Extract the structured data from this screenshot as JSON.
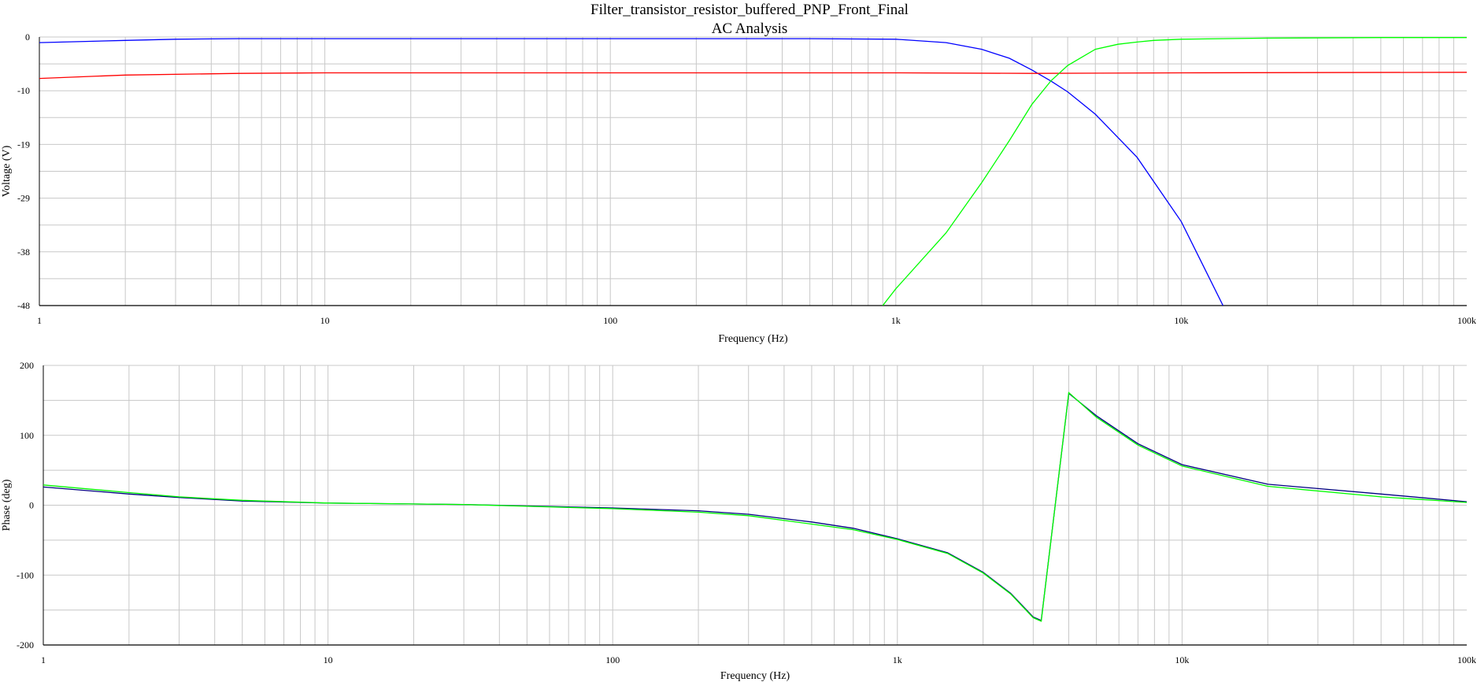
{
  "title": "Filter_transistor_resistor_buffered_PNP_Front_Final",
  "subtitle": "AC Analysis",
  "chart_data": [
    {
      "type": "line",
      "x_scale": "log",
      "xlim": [
        1,
        100000
      ],
      "ylim": [
        -48,
        0
      ],
      "xlabel": "Frequency (Hz)",
      "ylabel": "Voltage (V)",
      "x_tick_labels": [
        "1",
        "10",
        "100",
        "1k",
        "10k",
        "100k"
      ],
      "y_tick_labels": [
        "0",
        "-10",
        "-19",
        "-29",
        "-38",
        "-48"
      ],
      "grid": true,
      "series": [
        {
          "color": "#0000ff",
          "x": [
            1,
            2,
            3,
            5,
            10,
            100,
            500,
            1000,
            1500,
            2000,
            2500,
            3000,
            3500,
            4000,
            5000,
            7000,
            10000,
            14000
          ],
          "y": [
            -1.0,
            -0.6,
            -0.4,
            -0.3,
            -0.3,
            -0.3,
            -0.3,
            -0.4,
            -1.0,
            -2.2,
            -3.8,
            -5.9,
            -7.9,
            -9.8,
            -13.8,
            -21.5,
            -33.0,
            -48.0
          ]
        },
        {
          "color": "#ff0000",
          "x": [
            1,
            2,
            5,
            10,
            100,
            1000,
            3000,
            10000,
            100000
          ],
          "y": [
            -7.4,
            -6.8,
            -6.5,
            -6.4,
            -6.4,
            -6.4,
            -6.5,
            -6.4,
            -6.3
          ]
        },
        {
          "color": "#00ff00",
          "x": [
            900,
            1000,
            1500,
            2000,
            2500,
            3000,
            3500,
            4000,
            5000,
            6000,
            7000,
            8000,
            10000,
            20000,
            50000,
            100000
          ],
          "y": [
            -48.0,
            -45.0,
            -35.0,
            -26.0,
            -18.5,
            -12.0,
            -7.8,
            -5.1,
            -2.2,
            -1.3,
            -0.9,
            -0.6,
            -0.4,
            -0.2,
            -0.1,
            -0.1
          ]
        }
      ]
    },
    {
      "type": "line",
      "x_scale": "log",
      "xlim": [
        1,
        100000
      ],
      "ylim": [
        -200,
        200
      ],
      "xlabel": "Frequency (Hz)",
      "ylabel": "Phase (deg)",
      "x_tick_labels": [
        "1",
        "10",
        "100",
        "1k",
        "10k",
        "100k"
      ],
      "y_tick_labels": [
        "200",
        "100",
        "0",
        "-100",
        "-200"
      ],
      "grid": true,
      "series": [
        {
          "color": "#000080",
          "x": [
            1,
            2,
            3,
            5,
            10,
            30,
            100,
            200,
            300,
            500,
            700,
            1000,
            1500,
            2000,
            2500,
            3000,
            3200,
            4000,
            5000,
            7000,
            10000,
            20000,
            50000,
            100000
          ],
          "y": [
            26,
            16,
            11,
            6,
            3,
            1,
            -4,
            -8,
            -13,
            -24,
            -33,
            -48,
            -68,
            -96,
            -126,
            -160,
            -165,
            160,
            128,
            88,
            58,
            30,
            16,
            5
          ]
        },
        {
          "color": "#00ff00",
          "x": [
            1,
            2,
            3,
            5,
            10,
            30,
            100,
            200,
            300,
            500,
            700,
            1000,
            1500,
            2000,
            2500,
            3000,
            3200,
            4000,
            5000,
            7000,
            10000,
            20000,
            50000,
            100000
          ],
          "y": [
            29,
            18,
            12,
            7,
            3,
            1,
            -5,
            -10,
            -15,
            -27,
            -35,
            -49,
            -69,
            -97,
            -127,
            -161,
            -166,
            161,
            126,
            86,
            56,
            27,
            12,
            4
          ]
        }
      ]
    }
  ]
}
